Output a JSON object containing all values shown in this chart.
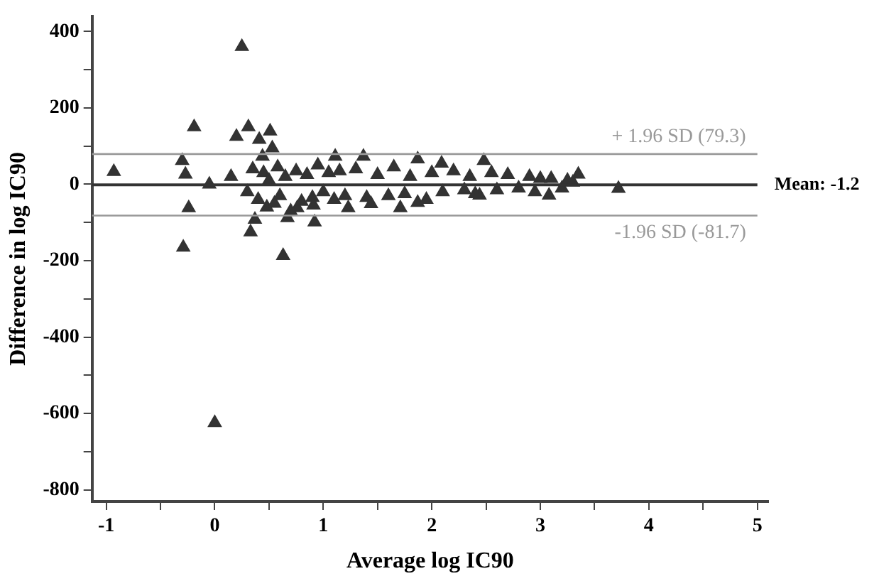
{
  "chart_data": {
    "type": "scatter",
    "xlabel": "Average log IC90",
    "ylabel": "Difference in log IC90",
    "xlim": [
      -1.13,
      5.1
    ],
    "ylim": [
      -830,
      440
    ],
    "xticks": [
      -1,
      {
        "value": -0.5,
        "label": null
      },
      0,
      {
        "value": 0.5,
        "label": null
      },
      1,
      {
        "value": 1.5,
        "label": null
      },
      2,
      {
        "value": 2.5,
        "label": null
      },
      3,
      {
        "value": 3.5,
        "label": null
      },
      4,
      {
        "value": 4.5,
        "label": null
      },
      5
    ],
    "yticks": [
      -800,
      {
        "value": -700,
        "label": null
      },
      -600,
      {
        "value": -500,
        "label": null
      },
      -400,
      {
        "value": -300,
        "label": null
      },
      -200,
      {
        "value": -100,
        "label": null
      },
      0,
      {
        "value": 100,
        "label": null
      },
      200,
      {
        "value": 300,
        "label": null
      },
      400
    ],
    "grid": false,
    "legend": false,
    "marker": "triangle",
    "series": [
      {
        "color": "#333333",
        "x": [
          -0.93,
          -0.19,
          -0.3,
          -0.27,
          -0.24,
          -0.29,
          -0.05,
          0,
          0.25,
          0.2,
          0.31,
          0.51,
          0.41,
          0.53,
          0.44,
          0.33,
          0.37,
          0.63,
          0.67,
          0.92,
          0.91,
          0.76,
          1.11,
          1.37,
          1.87,
          2.09,
          2.48,
          1.23,
          1.44,
          1.71,
          1.87,
          2.44,
          3.08,
          3.72,
          3.35,
          3.0,
          0.15,
          0.3,
          0.35,
          0.4,
          0.45,
          0.48,
          0.5,
          0.55,
          0.58,
          0.6,
          0.65,
          0.7,
          0.75,
          0.8,
          0.85,
          0.9,
          0.95,
          1.0,
          1.05,
          1.1,
          1.15,
          1.2,
          1.3,
          1.4,
          1.5,
          1.6,
          1.65,
          1.75,
          1.8,
          1.95,
          2.0,
          2.1,
          2.2,
          2.3,
          2.35,
          2.4,
          2.55,
          2.6,
          2.7,
          2.8,
          2.9,
          2.95,
          3.1,
          3.2,
          3.25,
          3.3
        ],
        "values": [
          33,
          150,
          62,
          26,
          -62,
          -165,
          0,
          -624,
          360,
          125,
          150,
          139,
          117,
          95,
          73,
          -125,
          -92,
          -187,
          -88,
          -99,
          -55,
          -62,
          73,
          73,
          66,
          55,
          62,
          -62,
          -51,
          -62,
          -48,
          -29,
          -29,
          -11,
          26,
          15,
          20,
          -20,
          40,
          -40,
          30,
          -60,
          10,
          -50,
          45,
          -30,
          20,
          -70,
          35,
          -45,
          25,
          -35,
          50,
          -20,
          30,
          -40,
          35,
          -30,
          40,
          -35,
          25,
          -30,
          45,
          -25,
          20,
          -40,
          30,
          -20,
          35,
          -15,
          20,
          -25,
          30,
          -15,
          25,
          -10,
          20,
          -20,
          15,
          -10,
          10,
          5
        ]
      }
    ],
    "ref_lines": [
      {
        "axis": "y",
        "value": 79.3,
        "label": "+ 1.96 SD (79.3)",
        "color": "#999999"
      },
      {
        "axis": "y",
        "value": -1.2,
        "label": "Mean: -1.2",
        "color": "#333333"
      },
      {
        "axis": "y",
        "value": -81.7,
        "label": "-1.96 SD (-81.7)",
        "color": "#999999"
      }
    ]
  }
}
